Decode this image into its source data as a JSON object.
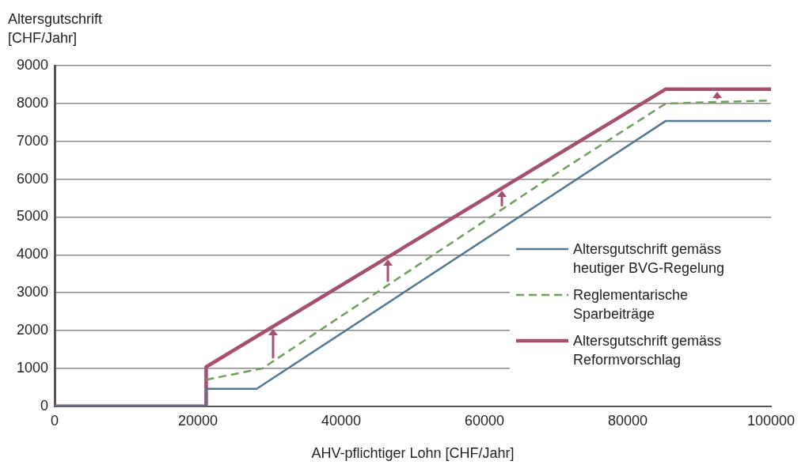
{
  "chart_data": {
    "type": "line",
    "ylabel": "Altersgutschrift [CHF/Jahr]",
    "xlabel": "AHV-pflichtiger Lohn [CHF/Jahr]",
    "xlim": [
      0,
      100000
    ],
    "xticks": [
      0,
      20000,
      40000,
      60000,
      80000,
      100000
    ],
    "ylim": [
      0,
      9000
    ],
    "yticks": [
      0,
      1000,
      2000,
      3000,
      4000,
      5000,
      6000,
      7000,
      8000,
      9000
    ],
    "grid": "y",
    "legend": "bottom right",
    "marker": "none",
    "series": [
      {
        "name": "Altersgutschrift gemäss heutiger BVG-Regelung",
        "color": "#52798f",
        "line_style": "solid",
        "x": [
          0,
          21150,
          21150,
          28200,
          85320,
          100000
        ],
        "values": [
          0,
          0,
          460,
          460,
          7540,
          7540
        ]
      },
      {
        "name": "Reglementarische Sparbeiträge",
        "color": "#6f9f5f",
        "line_style": "dashed",
        "x": [
          21150,
          29000,
          68000,
          85320,
          100000
        ],
        "values": [
          700,
          1000,
          5900,
          8000,
          8080
        ]
      },
      {
        "name": "Altersgutschrift gemäss Reformvorschlag",
        "color": "#a5506e",
        "line_style": "solid",
        "x": [
          0,
          21150,
          21150,
          85320,
          100000
        ],
        "values": [
          0,
          0,
          1040,
          8380,
          8380
        ]
      }
    ]
  }
}
